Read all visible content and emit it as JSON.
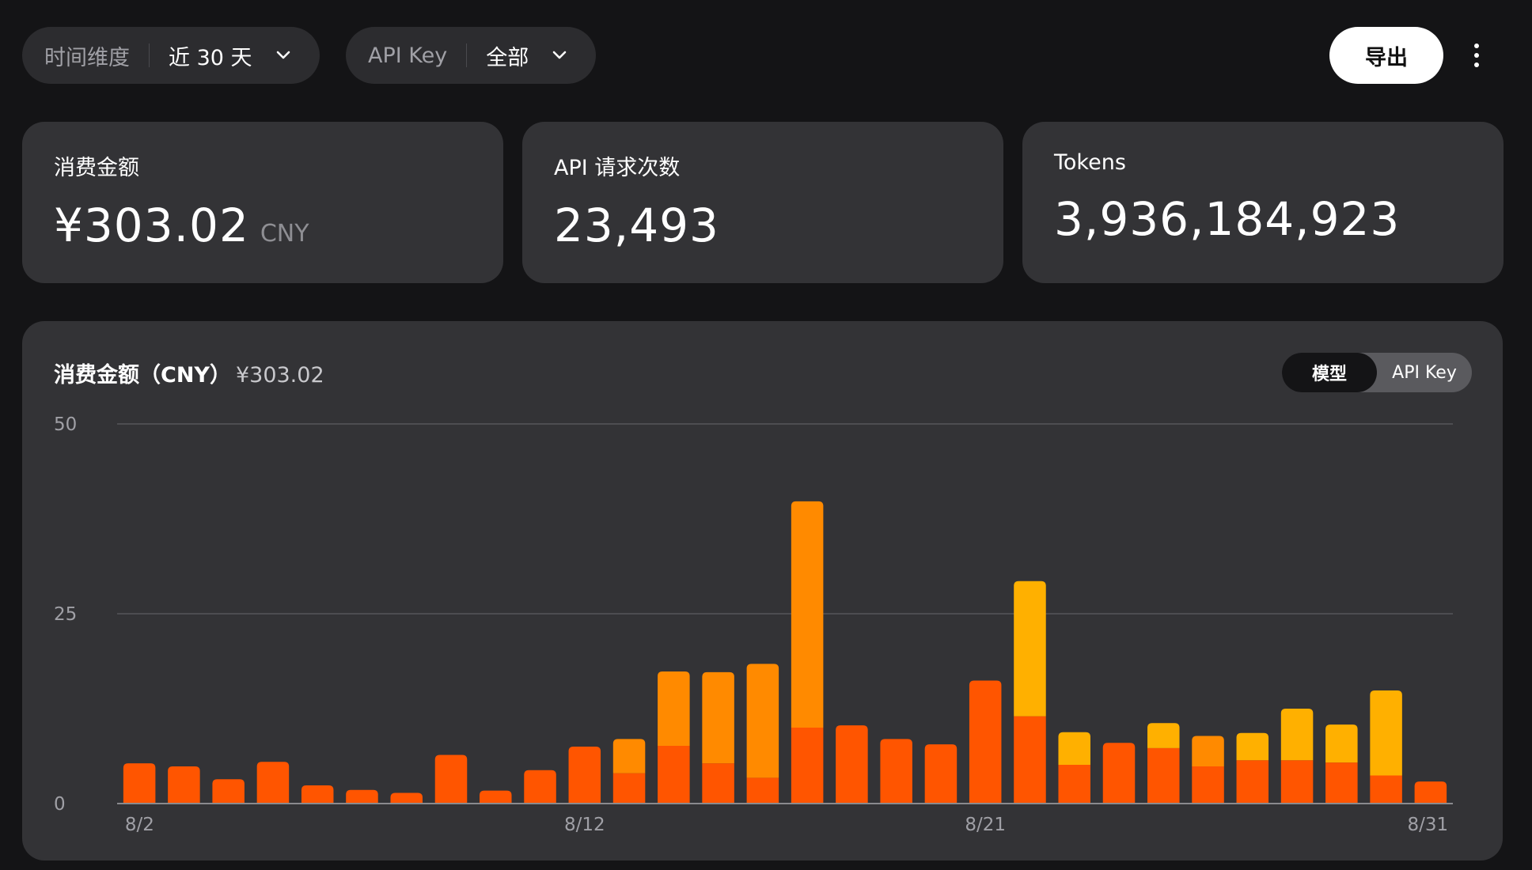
{
  "filters": {
    "time": {
      "label": "时间维度",
      "value": "近 30 天"
    },
    "api_key": {
      "label": "API Key",
      "value": "全部"
    }
  },
  "toolbar": {
    "export_label": "导出"
  },
  "stats": {
    "spend": {
      "title": "消费金额",
      "value": "¥303.02",
      "unit": "CNY"
    },
    "requests": {
      "title": "API 请求次数",
      "value": "23,493"
    },
    "tokens": {
      "title": "Tokens",
      "value": "3,936,184,923"
    }
  },
  "chart_panel": {
    "title": "消费金额（CNY）",
    "total": "¥303.02",
    "toggle": {
      "options": [
        "模型",
        "API Key"
      ],
      "selected": "模型"
    }
  },
  "colors": {
    "bar_base": "#ff5500",
    "bar_mid": "#ff8a00",
    "bar_top": "#ffb000",
    "card": "#333336",
    "background": "#141416"
  },
  "chart_data": {
    "type": "bar",
    "stacked": true,
    "x": [
      "8/2",
      "8/3",
      "8/4",
      "8/5",
      "8/6",
      "8/7",
      "8/8",
      "8/9",
      "8/10",
      "8/11",
      "8/12",
      "8/13",
      "8/14",
      "8/15",
      "8/16",
      "8/17",
      "8/18",
      "8/19",
      "8/20",
      "8/21",
      "8/22",
      "8/23",
      "8/24",
      "8/25",
      "8/26",
      "8/27",
      "8/28",
      "8/29",
      "8/30",
      "8/31"
    ],
    "xticks": [
      "8/2",
      "8/12",
      "8/21",
      "8/31"
    ],
    "yticks": [
      0,
      25,
      50
    ],
    "ylim": [
      0,
      50
    ],
    "grid": true,
    "series": [
      {
        "color": "#ff5500",
        "values": [
          5.3,
          4.9,
          3.2,
          5.5,
          2.4,
          1.8,
          1.4,
          6.4,
          1.7,
          4.4,
          7.5,
          4.0,
          7.6,
          5.3,
          3.4,
          10.0,
          10.3,
          8.5,
          7.8,
          16.2,
          11.5,
          5.1,
          8.0,
          7.3,
          4.9,
          5.7,
          5.7,
          5.4,
          3.7,
          2.9
        ]
      },
      {
        "color": "#ff8a00",
        "values": [
          0,
          0,
          0,
          0,
          0,
          0,
          0,
          0,
          0,
          0,
          0,
          4.5,
          9.8,
          12.0,
          15.0,
          29.8,
          0,
          0,
          0,
          0,
          0,
          0,
          0,
          0,
          4.0,
          0,
          0,
          0,
          0,
          0
        ]
      },
      {
        "color": "#ffb000",
        "values": [
          0,
          0,
          0,
          0,
          0,
          0,
          0,
          0,
          0,
          0,
          0,
          0,
          0,
          0,
          0,
          0,
          0,
          0,
          0,
          0,
          17.8,
          4.3,
          0,
          3.3,
          0,
          3.6,
          6.8,
          5.0,
          11.2,
          0
        ]
      }
    ]
  }
}
